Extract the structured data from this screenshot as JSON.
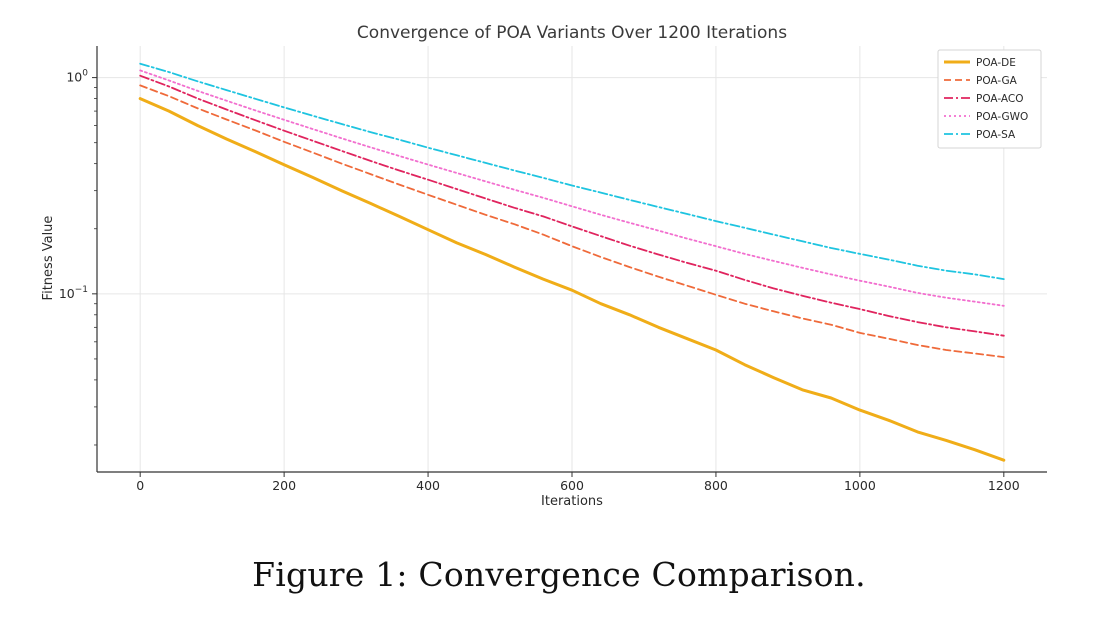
{
  "caption": "Figure 1: Convergence Comparison.",
  "chart_data": {
    "type": "line",
    "title": "Convergence of POA Variants Over 1200 Iterations",
    "xlabel": "Iterations",
    "ylabel": "Fitness Value",
    "xlim": [
      -60,
      1260
    ],
    "xticks": [
      0,
      200,
      400,
      600,
      800,
      1000,
      1200
    ],
    "y_scale": "log",
    "ylim": [
      0.015,
      1.4
    ],
    "yticks": [
      {
        "value": 1.0,
        "base": "10",
        "exp": "0"
      },
      {
        "value": 0.1,
        "base": "10",
        "exp": "−1"
      }
    ],
    "grid": true,
    "legend_position": "top-right",
    "x": [
      0,
      40,
      80,
      120,
      160,
      200,
      240,
      280,
      320,
      360,
      400,
      440,
      480,
      520,
      560,
      600,
      640,
      680,
      720,
      760,
      800,
      840,
      880,
      920,
      960,
      1000,
      1040,
      1080,
      1120,
      1160,
      1200
    ],
    "series": [
      {
        "name": "POA-DE",
        "color": "#f0ad18",
        "style": "solid",
        "values": [
          0.8,
          0.7,
          0.6,
          0.52,
          0.455,
          0.395,
          0.345,
          0.3,
          0.262,
          0.228,
          0.198,
          0.172,
          0.152,
          0.133,
          0.117,
          0.104,
          0.09,
          0.08,
          0.07,
          0.062,
          0.055,
          0.047,
          0.041,
          0.036,
          0.033,
          0.029,
          0.026,
          0.023,
          0.021,
          0.019,
          0.017
        ]
      },
      {
        "name": "POA-GA",
        "color": "#ef6a3a",
        "style": "dashed",
        "values": [
          0.92,
          0.82,
          0.72,
          0.64,
          0.57,
          0.505,
          0.45,
          0.4,
          0.358,
          0.32,
          0.287,
          0.258,
          0.232,
          0.21,
          0.188,
          0.166,
          0.148,
          0.133,
          0.12,
          0.109,
          0.099,
          0.09,
          0.083,
          0.077,
          0.072,
          0.066,
          0.062,
          0.058,
          0.055,
          0.053,
          0.051
        ]
      },
      {
        "name": "POA-ACO",
        "color": "#e0245e",
        "style": "dashdot",
        "values": [
          1.02,
          0.91,
          0.8,
          0.712,
          0.635,
          0.568,
          0.51,
          0.458,
          0.412,
          0.372,
          0.337,
          0.305,
          0.276,
          0.25,
          0.228,
          0.205,
          0.185,
          0.167,
          0.152,
          0.139,
          0.128,
          0.116,
          0.106,
          0.098,
          0.091,
          0.085,
          0.079,
          0.074,
          0.07,
          0.067,
          0.064
        ]
      },
      {
        "name": "POA-GWO",
        "color": "#f26fcf",
        "style": "dotted",
        "values": [
          1.08,
          0.97,
          0.868,
          0.782,
          0.705,
          0.638,
          0.578,
          0.524,
          0.476,
          0.434,
          0.396,
          0.362,
          0.331,
          0.303,
          0.278,
          0.254,
          0.232,
          0.213,
          0.196,
          0.18,
          0.166,
          0.153,
          0.142,
          0.132,
          0.123,
          0.115,
          0.108,
          0.101,
          0.096,
          0.092,
          0.088
        ]
      },
      {
        "name": "POA-SA",
        "color": "#1ec4e0",
        "style": "dashdot",
        "values": [
          1.16,
          1.06,
          0.96,
          0.875,
          0.798,
          0.728,
          0.666,
          0.61,
          0.56,
          0.516,
          0.474,
          0.437,
          0.403,
          0.372,
          0.344,
          0.317,
          0.294,
          0.272,
          0.252,
          0.234,
          0.217,
          0.202,
          0.188,
          0.175,
          0.163,
          0.153,
          0.144,
          0.135,
          0.128,
          0.123,
          0.117
        ]
      }
    ]
  }
}
